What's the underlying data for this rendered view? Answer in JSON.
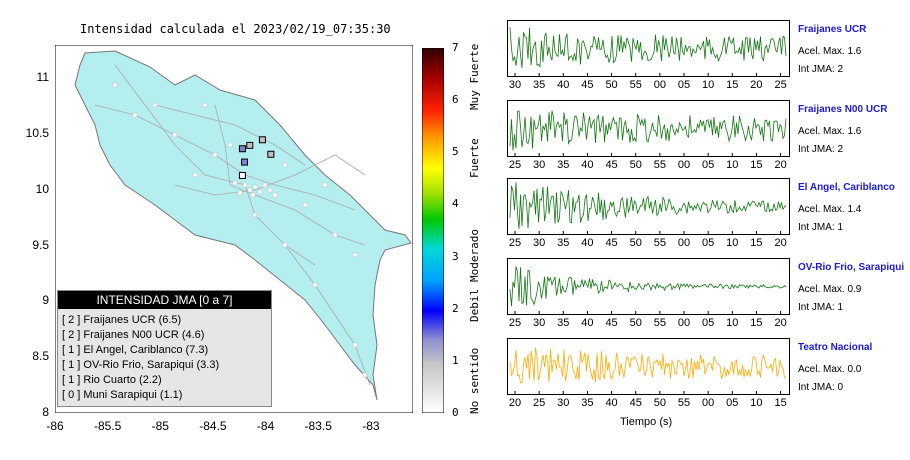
{
  "map": {
    "title": "Intensidad calculada el 2023/02/19_07:35:30",
    "lat_ticks": [
      "11",
      "10.5",
      "10",
      "9.5",
      "9",
      "8.5",
      "8"
    ],
    "lon_ticks": [
      "-86",
      "-85.5",
      "-85",
      "-84.5",
      "-84",
      "-83.5",
      "-83"
    ],
    "land_color": "#b4eeee",
    "legend": {
      "title": "INTENSIDAD JMA [0 a 7]",
      "rows": [
        "[ 2 ]  Fraijanes UCR (6.5)",
        "[ 2 ]  Fraijanes N00 UCR (4.6)",
        "[ 1 ]  El Angel, Cariblanco (7.3)",
        "[ 1 ]  OV-Rio Frio, Sarapiqui (3.3)",
        "[ 1 ]  Rio Cuarto (2.2)",
        "[ 0 ]  Muni Sarapiqui (1.1)"
      ]
    }
  },
  "colorbar": {
    "ticks": [
      "7",
      "6",
      "5",
      "4",
      "3",
      "2",
      "1",
      "0"
    ],
    "labels": [
      "Muy Fuerte",
      "Fuerte",
      "Moderado",
      "Debil",
      "No sentido"
    ]
  },
  "stations": [
    {
      "name": "Fraijanes UCR",
      "accel": "Acel. Max. 1.6",
      "int": "Int JMA: 2",
      "color": "#117711",
      "ticks": [
        "30",
        "35",
        "40",
        "45",
        "50",
        "55",
        "00",
        "05",
        "10",
        "15",
        "20",
        "25"
      ],
      "decay": 0.35
    },
    {
      "name": "Fraijanes N00 UCR",
      "accel": "Acel. Max. 1.6",
      "int": "Int JMA: 2",
      "color": "#117711",
      "ticks": [
        "25",
        "30",
        "35",
        "40",
        "45",
        "50",
        "55",
        "00",
        "05",
        "10",
        "15",
        "20"
      ],
      "decay": 0.3
    },
    {
      "name": "El Angel, Cariblanco",
      "accel": "Acel. Max. 1.4",
      "int": "Int JMA: 1",
      "color": "#117711",
      "ticks": [
        "25",
        "30",
        "35",
        "40",
        "45",
        "50",
        "55",
        "00",
        "05",
        "10",
        "15",
        "20"
      ],
      "decay": 2.0
    },
    {
      "name": "OV-Rio Frio, Sarapiqui",
      "accel": "Acel. Max. 0.9",
      "int": "Int JMA: 1",
      "color": "#117711",
      "ticks": [
        "25",
        "30",
        "35",
        "40",
        "45",
        "50",
        "55",
        "00",
        "05",
        "10",
        "15",
        "20"
      ],
      "decay": 4.5
    },
    {
      "name": "Teatro Nacional",
      "accel": "Acel. Max. 0.0",
      "int": "Int JMA: 0",
      "color": "#ffaa00",
      "ticks": [
        "20",
        "25",
        "30",
        "35",
        "40",
        "45",
        "50",
        "55",
        "00",
        "05",
        "10",
        "15"
      ],
      "decay": 0.5
    }
  ],
  "time_label": "Tiempo (s)",
  "chart_data": [
    {
      "type": "scatter",
      "title": "Intensidad calculada el 2023/02/19_07:35:30",
      "xlabel": "",
      "ylabel": "",
      "xlim": [
        -86,
        -82.6
      ],
      "ylim": [
        8,
        11.3
      ],
      "series": [
        {
          "name": "estaciones",
          "points": [
            {
              "x": -84.22,
              "y": 10.37,
              "value": 2
            },
            {
              "x": -84.15,
              "y": 10.4,
              "value": 1
            },
            {
              "x": -84.03,
              "y": 10.45,
              "value": 1
            },
            {
              "x": -83.95,
              "y": 10.32,
              "value": 1
            },
            {
              "x": -84.2,
              "y": 10.25,
              "value": 2
            },
            {
              "x": -84.22,
              "y": 10.13,
              "value": 0
            }
          ]
        }
      ]
    },
    {
      "type": "line",
      "title": "Fraijanes UCR",
      "ylabel": "Acel. Max. 1.6",
      "xlabel": "Tiempo (s)"
    },
    {
      "type": "line",
      "title": "Fraijanes N00 UCR",
      "ylabel": "Acel. Max. 1.6",
      "xlabel": "Tiempo (s)"
    },
    {
      "type": "line",
      "title": "El Angel, Cariblanco",
      "ylabel": "Acel. Max. 1.4",
      "xlabel": "Tiempo (s)"
    },
    {
      "type": "line",
      "title": "OV-Rio Frio, Sarapiqui",
      "ylabel": "Acel. Max. 0.9",
      "xlabel": "Tiempo (s)"
    },
    {
      "type": "line",
      "title": "Teatro Nacional",
      "ylabel": "Acel. Max. 0.0",
      "xlabel": "Tiempo (s)"
    }
  ]
}
